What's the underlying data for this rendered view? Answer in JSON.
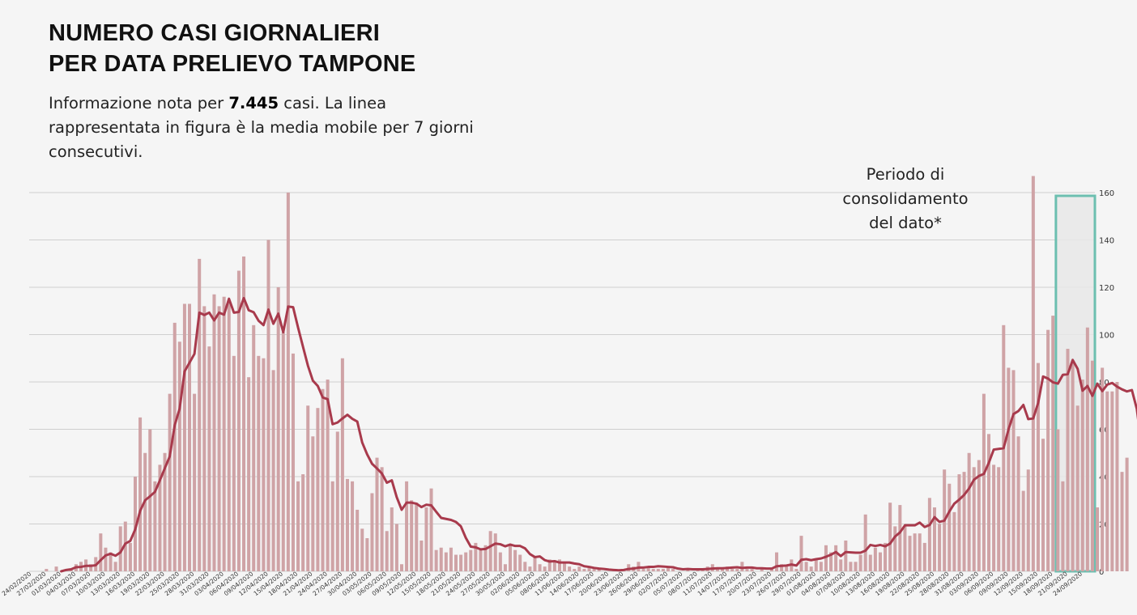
{
  "title_lines": [
    "NUMERO CASI GIORNALIERI",
    "PER DATA PRELIEVO TAMPONE"
  ],
  "subtitle": {
    "before": "Informazione nota per ",
    "count": "7.445",
    "after": "  casi. La linea rappresentata in figura è la media mobile per 7 giorni consecutivi."
  },
  "consolidation_lines": [
    "Periodo di",
    "consolidamento",
    "del dato*"
  ],
  "colors": {
    "bar": "#cfa3a6",
    "line": "#a83a4c",
    "grid": "#cfcfcf",
    "consolidation_border": "#6cbfb0",
    "consolidation_fill": "#e8e8e8"
  },
  "chart_data": {
    "type": "bar",
    "start_date": "2020-02-24",
    "end_date": "2020-09-26",
    "ylim": [
      0,
      160
    ],
    "yticks": [
      0,
      20,
      40,
      60,
      80,
      100,
      120,
      140,
      160
    ],
    "xtick_labels": [
      "24/02/2020",
      "27/02/2020",
      "01/03/2020",
      "04/03/2020",
      "07/03/2020",
      "10/03/2020",
      "13/03/2020",
      "16/03/2020",
      "19/03/2020",
      "22/03/2020",
      "25/03/2020",
      "28/03/2020",
      "31/03/2020",
      "03/04/2020",
      "06/04/2020",
      "09/04/2020",
      "12/04/2020",
      "15/04/2020",
      "18/04/2020",
      "21/04/2020",
      "24/04/2020",
      "27/04/2020",
      "30/04/2020",
      "03/05/2020",
      "06/05/2020",
      "09/05/2020",
      "12/05/2020",
      "15/05/2020",
      "18/05/2020",
      "21/05/2020",
      "24/05/2020",
      "27/05/2020",
      "30/05/2020",
      "02/06/2020",
      "05/06/2020",
      "08/06/2020",
      "11/06/2020",
      "14/06/2020",
      "17/06/2020",
      "20/06/2020",
      "23/06/2020",
      "26/06/2020",
      "29/06/2020",
      "02/07/2020",
      "05/07/2020",
      "08/07/2020",
      "11/07/2020",
      "14/07/2020",
      "17/07/2020",
      "20/07/2020",
      "23/07/2020",
      "26/07/2020",
      "29/07/2020",
      "01/08/2020",
      "04/08/2020",
      "07/08/2020",
      "10/08/2020",
      "13/08/2020",
      "16/08/2020",
      "19/08/2020",
      "22/08/2020",
      "25/08/2020",
      "28/08/2020",
      "31/08/2020",
      "03/09/2020",
      "06/09/2020",
      "09/09/2020",
      "12/09/2020",
      "15/09/2020",
      "18/09/2020",
      "21/09/2020",
      "24/09/2020"
    ],
    "daily_cases": [
      0,
      0,
      0,
      1,
      0,
      2,
      0,
      0,
      1,
      3,
      4,
      5,
      3,
      6,
      16,
      10,
      8,
      4,
      19,
      21,
      12,
      40,
      65,
      50,
      60,
      38,
      45,
      50,
      75,
      105,
      97,
      113,
      113,
      75,
      132,
      112,
      95,
      117,
      112,
      116,
      114,
      91,
      127,
      133,
      82,
      104,
      91,
      90,
      140,
      85,
      120,
      101,
      160,
      92,
      38,
      41,
      70,
      57,
      69,
      77,
      81,
      38,
      59,
      90,
      39,
      38,
      26,
      18,
      14,
      33,
      48,
      44,
      17,
      27,
      20,
      3,
      38,
      30,
      29,
      13,
      27,
      35,
      9,
      10,
      8,
      10,
      7,
      7,
      8,
      9,
      12,
      9,
      11,
      17,
      16,
      8,
      3,
      11,
      9,
      7,
      4,
      2,
      6,
      3,
      2,
      5,
      4,
      5,
      4,
      2,
      1,
      2,
      1,
      2,
      1,
      1,
      0,
      0,
      1,
      0,
      1,
      3,
      2,
      4,
      1,
      2,
      1,
      1,
      1,
      2,
      1,
      0,
      0,
      1,
      0,
      1,
      1,
      2,
      3,
      1,
      1,
      2,
      1,
      1,
      4,
      1,
      1,
      0,
      1,
      0,
      1,
      8,
      3,
      2,
      5,
      1,
      15,
      4,
      2,
      5,
      4,
      11,
      8,
      11,
      5,
      13,
      4,
      4,
      7,
      24,
      7,
      10,
      8,
      12,
      29,
      19,
      28,
      19,
      15,
      16,
      16,
      12,
      31,
      27,
      20,
      43,
      37,
      25,
      41,
      42,
      50,
      44,
      47,
      75,
      58,
      45,
      44,
      104,
      86,
      85,
      57,
      34,
      43,
      167,
      88,
      56,
      102,
      108,
      60,
      38,
      94,
      89,
      70,
      81,
      103,
      89,
      27,
      86,
      76,
      76,
      80,
      42,
      48
    ],
    "moving_average_7d": [
      0,
      0,
      0,
      0,
      0,
      0,
      0,
      0.57,
      0.86,
      1.71,
      1.86,
      2.29,
      2.29,
      2.57,
      4.71,
      6.71,
      7.43,
      6.57,
      8,
      11.71,
      12.86,
      17.71,
      25.57,
      30,
      31.71,
      33.57,
      38.43,
      43.57,
      48.57,
      61.71,
      68.71,
      84.43,
      88.14,
      91.86,
      109.29,
      108.29,
      109.29,
      106,
      109.29,
      108.43,
      115.14,
      109.29,
      109.57,
      115.43,
      110.29,
      109.43,
      105.86,
      104,
      110.57,
      104.57,
      108.86,
      101,
      111.86,
      111.57,
      103,
      94.86,
      86.86,
      80.57,
      78.29,
      73.43,
      72.71,
      62.14,
      62.86,
      64.57,
      66.14,
      64.43,
      63.29,
      54.43,
      49.43,
      45.43,
      43.43,
      41.29,
      37.43,
      38.43,
      31.29,
      26,
      29,
      29,
      28.57,
      27.14,
      28.14,
      27.86,
      25.14,
      22.57,
      22.14,
      21.71,
      20.86,
      19,
      14.14,
      10.43,
      10.14,
      9.29,
      9.43,
      10.57,
      11.71,
      11.43,
      10.57,
      11.29,
      10.71,
      10.71,
      9.71,
      7.29,
      6,
      6.29,
      4.71,
      4.14,
      4.29,
      3.71,
      3.71,
      3.71,
      3.29,
      3,
      2.14,
      1.86,
      1.43,
      1.14,
      1,
      0.71,
      0.57,
      0.43,
      0.57,
      1,
      1.14,
      1.57,
      1.57,
      1.86,
      1.86,
      2.14,
      2,
      1.86,
      1.71,
      1.14,
      0.86,
      1,
      0.86,
      0.86,
      0.86,
      1,
      1.14,
      1.29,
      1.29,
      1.43,
      1.57,
      1.71,
      1.43,
      1.57,
      1.57,
      1.29,
      1.29,
      1.14,
      1.14,
      2.14,
      2.29,
      2.43,
      2.86,
      2.43,
      4.86,
      5.14,
      4.71,
      5.14,
      5.43,
      6.14,
      7,
      8.14,
      6.43,
      8.14,
      8,
      7.86,
      7.86,
      8.71,
      11.14,
      10.71,
      11.14,
      10.57,
      11.71,
      14.71,
      16.43,
      19.43,
      19.43,
      19.43,
      20.57,
      18.71,
      19.57,
      22.86,
      20.86,
      21.43,
      25.29,
      28.57,
      30.29,
      32.29,
      35,
      38.71,
      40.29,
      41.14,
      45.86,
      51.43,
      51.71,
      52,
      60,
      66.43,
      67.71,
      70.29,
      64.29,
      64.57,
      71.14,
      82.29,
      81.43,
      79.86,
      79.29,
      83,
      83.29,
      89.29,
      85.57,
      76.29,
      78.29,
      74.14,
      79.29,
      76.14,
      78.86,
      79.57,
      78,
      76.86,
      76,
      76.57,
      68.57,
      52.29,
      49.71
    ],
    "consolidation_from": "2020-09-19"
  }
}
